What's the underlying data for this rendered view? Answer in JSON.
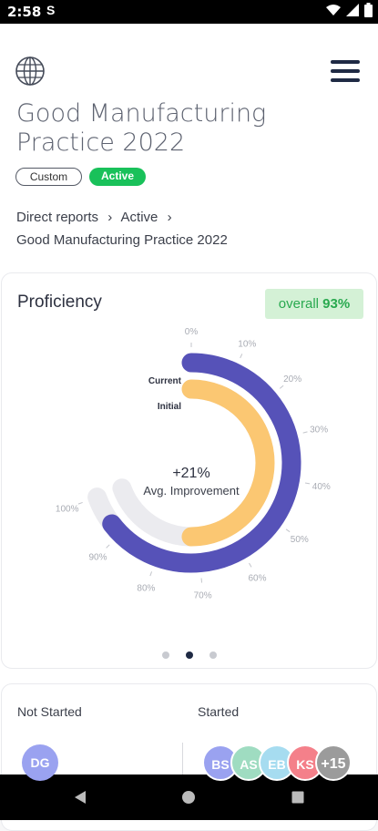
{
  "status_bar": {
    "time": "2:58",
    "notification_glyph": "S"
  },
  "header": {
    "globe_icon": "globe-icon",
    "menu_icon": "hamburger-menu-icon"
  },
  "title": "Good Manufacturing Practice 2022",
  "badges": {
    "custom": "Custom",
    "active": "Active"
  },
  "breadcrumb": {
    "item1": "Direct reports",
    "sep": "›",
    "item2": "Active",
    "item3": "Good Manufacturing Practice 2022"
  },
  "proficiency": {
    "title": "Proficiency",
    "overall_label": "overall",
    "overall_value": "93%",
    "center_value": "+21%",
    "center_label": "Avg. Improvement",
    "current_label": "Current",
    "initial_label": "Initial",
    "ticks": [
      "0%",
      "10%",
      "20%",
      "30%",
      "40%",
      "50%",
      "60%",
      "70%",
      "80%",
      "90%",
      "100%"
    ],
    "page_indicator": {
      "count": 3,
      "active_index": 1
    }
  },
  "chart_data": {
    "type": "radial-bar",
    "series": [
      {
        "name": "Current",
        "value": 93,
        "color": "#5652b8"
      },
      {
        "name": "Initial",
        "value": 72,
        "color": "#fbc772"
      }
    ],
    "axis": {
      "min": 0,
      "max": 100,
      "ticks": [
        0,
        10,
        20,
        30,
        40,
        50,
        60,
        70,
        80,
        90,
        100
      ],
      "unit": "%"
    },
    "track_color": "#ebebef",
    "center_text": "+21%",
    "center_subtext": "Avg. Improvement"
  },
  "progress": {
    "not_started_label": "Not Started",
    "started_label": "Started",
    "not_started_avatars": [
      {
        "initials": "DG",
        "color": "#9aa2f0"
      }
    ],
    "started_avatars": [
      {
        "initials": "BS",
        "color": "#9aa2f0"
      },
      {
        "initials": "AS",
        "color": "#9fdcc1"
      },
      {
        "initials": "EB",
        "color": "#a6dcf0"
      },
      {
        "initials": "KS",
        "color": "#f4808a"
      },
      {
        "initials": "+15",
        "color": "#9b9b9b"
      }
    ]
  },
  "colors": {
    "accent": "#1f2a44",
    "active": "#19c15a",
    "overall_bg": "#d4f1d6",
    "overall_text": "#29a94f"
  }
}
